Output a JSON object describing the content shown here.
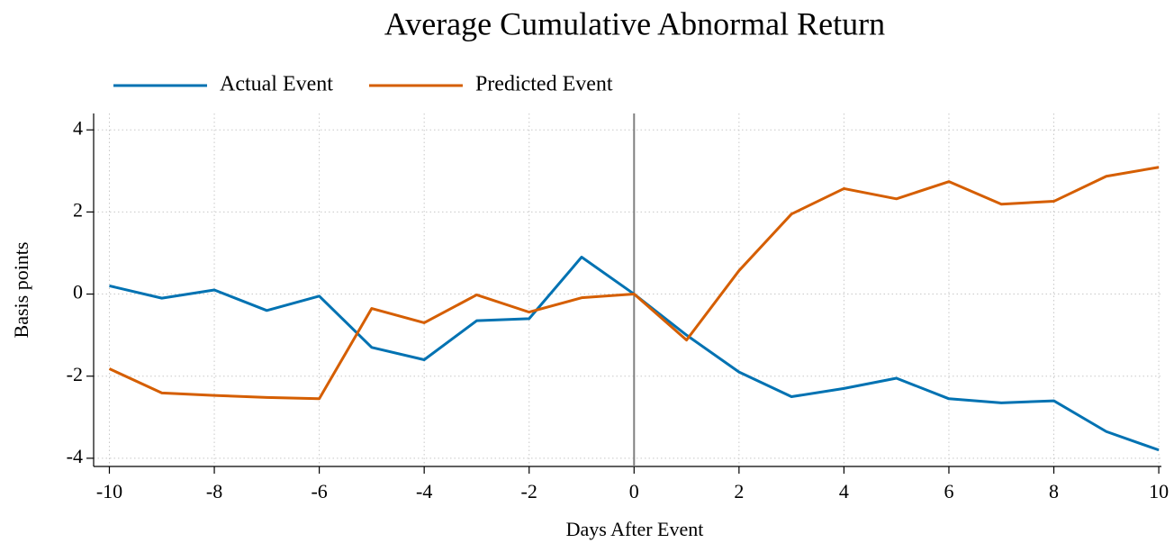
{
  "chart_data": {
    "type": "line",
    "title": "Average Cumulative Abnormal Return",
    "x_label": "Days After Event",
    "y_label": "Basis points",
    "x": [
      -10,
      -9,
      -8,
      -7,
      -6,
      -5,
      -4,
      -3,
      -2,
      -1,
      0,
      1,
      2,
      3,
      4,
      5,
      6,
      7,
      8,
      9,
      10
    ],
    "series": [
      {
        "name": "Actual Event",
        "color": "#0072b2",
        "values": [
          0.2,
          -0.1,
          0.1,
          -0.4,
          -0.05,
          -1.3,
          -1.6,
          -0.65,
          -0.6,
          0.9,
          0,
          -1.0,
          -1.9,
          -2.5,
          -2.3,
          -2.05,
          -2.55,
          -2.65,
          -2.6,
          -3.35,
          -3.8
        ]
      },
      {
        "name": "Predicted Event",
        "color": "#d55e00",
        "values": [
          -1.82,
          -2.41,
          -2.47,
          -2.52,
          -2.55,
          -0.35,
          -0.7,
          -0.02,
          -0.44,
          -0.09,
          0,
          -1.12,
          0.57,
          1.95,
          2.57,
          2.32,
          2.74,
          2.19,
          2.26,
          2.87,
          3.09
        ]
      }
    ],
    "xlim": [
      -10.3,
      10.05
    ],
    "ylim": [
      -4.2,
      4.4
    ],
    "xticks": [
      -10,
      -8,
      -6,
      -4,
      -2,
      0,
      2,
      4,
      6,
      8,
      10
    ],
    "yticks": [
      -4,
      -2,
      0,
      2,
      4
    ],
    "grid": true,
    "vline": 0,
    "vline_color": "#808080",
    "legend": "top-left"
  }
}
